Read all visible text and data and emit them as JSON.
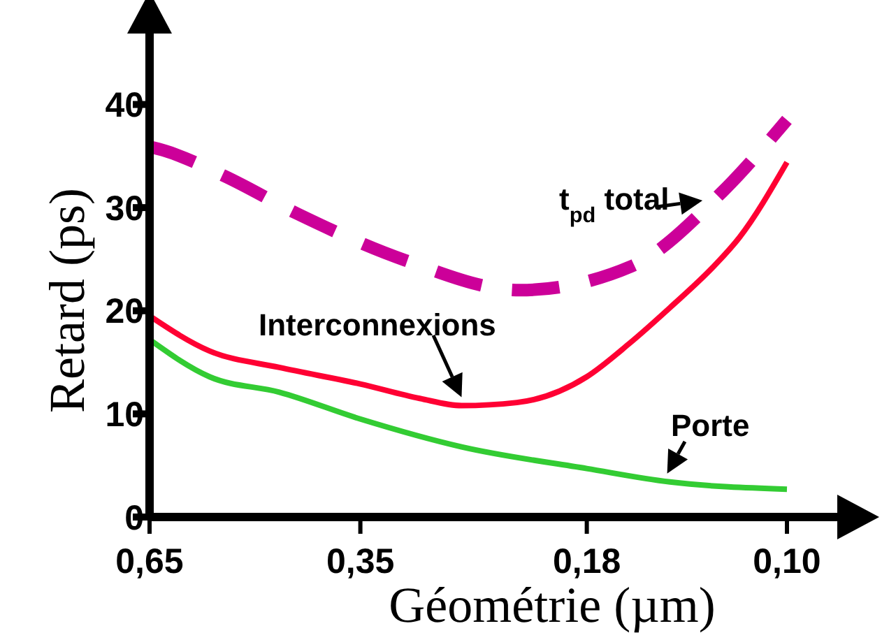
{
  "chart_data": {
    "type": "line",
    "xlabel": "Géométrie (µm)",
    "ylabel": "Retard (ps)",
    "log": "x",
    "xlim": [
      0.65,
      0.1
    ],
    "xticks": [
      {
        "value": 0.65,
        "label": "0,65"
      },
      {
        "value": 0.35,
        "label": "0,35"
      },
      {
        "value": 0.18,
        "label": "0,18"
      },
      {
        "value": 0.1,
        "label": "0,10"
      }
    ],
    "ylim": [
      0,
      42
    ],
    "yticks": [
      0,
      10,
      20,
      30,
      40
    ],
    "grid": false,
    "legend": false,
    "marker": "none",
    "series": [
      {
        "name": "t$_{pd}$ total",
        "color": "#cc0099",
        "line_style": "dashed",
        "x": [
          0.65,
          0.621,
          0.523,
          0.421,
          0.307,
          0.219,
          0.158,
          0.121,
          0.1
        ],
        "values": [
          35.9,
          35.5,
          33.1,
          29.4,
          24.9,
          22.0,
          24.3,
          31.5,
          38.5
        ]
      },
      {
        "name": "Interconnexions",
        "color": "#ff0033",
        "line_style": "solid",
        "x": [
          0.65,
          0.545,
          0.444,
          0.35,
          0.294,
          0.26,
          0.221,
          0.18,
          0.159,
          0.141,
          0.124,
          0.115,
          0.1
        ],
        "values": [
          19.5,
          16.1,
          14.5,
          12.9,
          11.5,
          10.8,
          11.1,
          13.6,
          16.8,
          20.3,
          24.3,
          27.1,
          34.4
        ]
      },
      {
        "name": "Porte",
        "color": "#33cc33",
        "line_style": "solid",
        "x": [
          0.65,
          0.545,
          0.444,
          0.35,
          0.26,
          0.18,
          0.141,
          0.1
        ],
        "values": [
          17.2,
          13.6,
          12.1,
          9.5,
          6.8,
          4.7,
          3.4,
          2.7
        ]
      }
    ]
  }
}
